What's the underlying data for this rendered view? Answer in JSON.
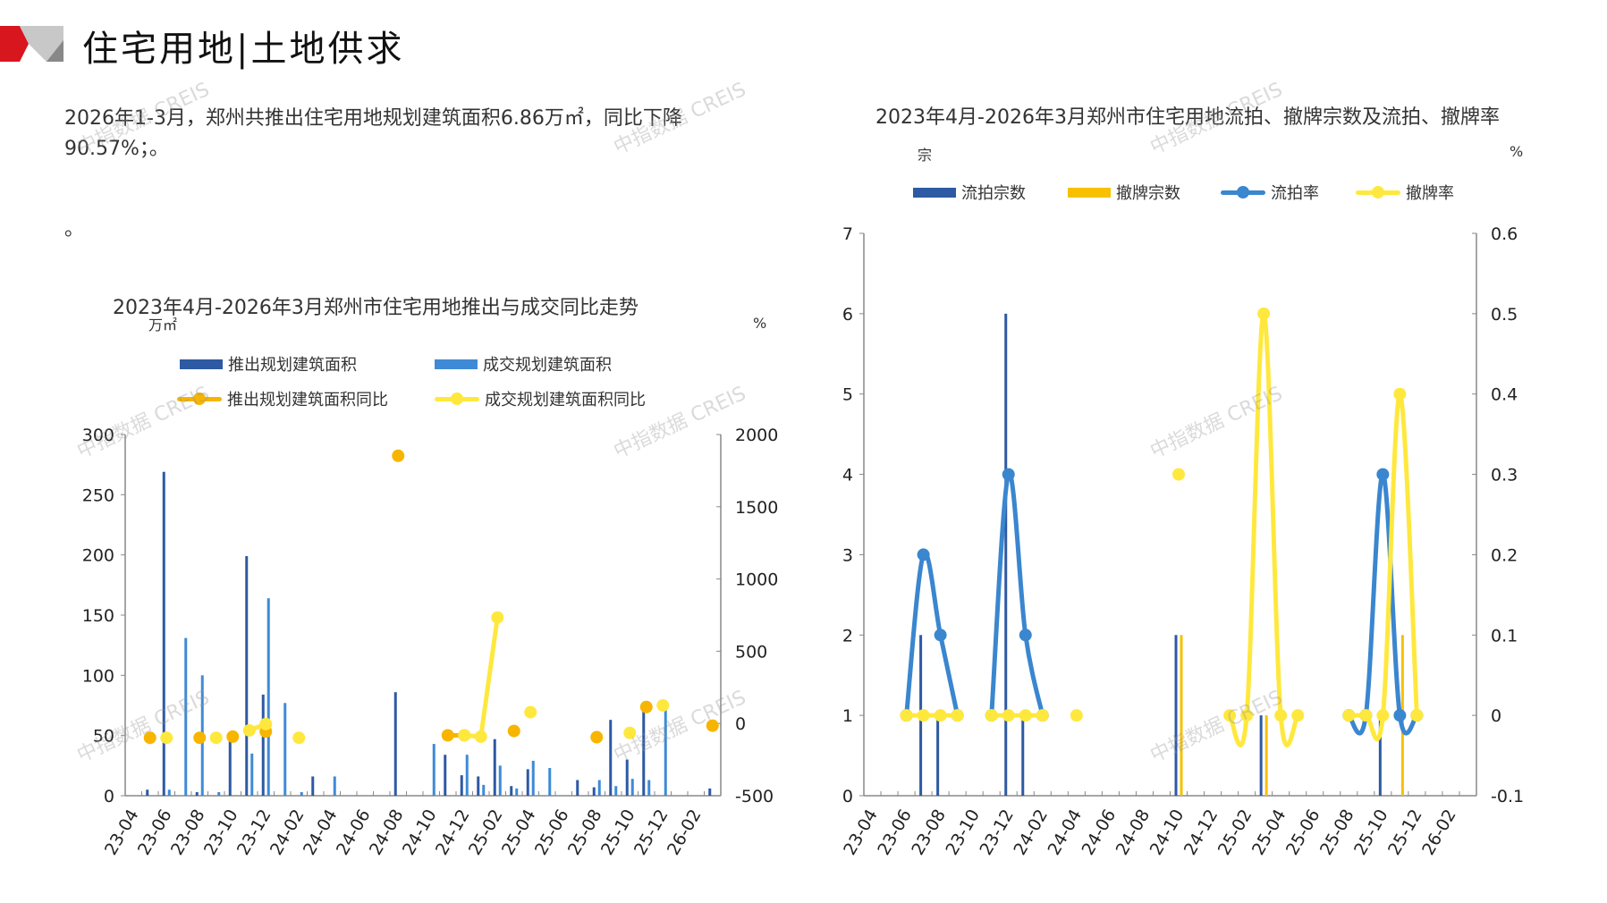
{
  "page": {
    "title": "住宅用地|土地供求",
    "paragraph": "2026年1-3月，郑州共推出住宅用地规划建筑面积6.86万㎡，同比下降90.57%；。",
    "paragraph2": "。",
    "watermark": "中指数据 CREIS"
  },
  "colors": {
    "dark_blue": "#2E59A3",
    "light_blue": "#3F8AD6",
    "orange": "#F7B500",
    "yellow": "#FFE83D",
    "blue_line": "#3A86CF",
    "axis": "#888888",
    "logo_red": "#D7161E"
  },
  "chart_data": [
    {
      "type": "bar",
      "title": "2023年4月-2026年3月郑州市住宅用地推出与成交同比走势",
      "ylabel": "万㎡",
      "y2label": "%",
      "ylim": [
        0,
        300
      ],
      "y_ticks": [
        "0",
        "50",
        "100",
        "150",
        "200",
        "250",
        "300"
      ],
      "y2lim": [
        -500,
        2000
      ],
      "y2_ticks": [
        "-500",
        "0",
        "500",
        "1000",
        "1500",
        "2000"
      ],
      "x_tick_labels": [
        "23-04",
        "23-06",
        "23-08",
        "23-10",
        "23-12",
        "24-02",
        "24-04",
        "24-06",
        "24-08",
        "24-10",
        "24-12",
        "25-02",
        "25-04",
        "25-06",
        "25-08",
        "25-10",
        "25-12",
        "26-02"
      ],
      "months_count": 36,
      "legend": [
        "推出规划建筑面积",
        "成交规划建筑面积",
        "推出规划建筑面积同比",
        "成交规划建筑面积同比"
      ],
      "series": [
        {
          "name": "推出规划建筑面积",
          "kind": "bar",
          "axis": "left",
          "values": [
            0,
            5,
            269,
            0,
            3,
            0,
            46,
            199,
            84,
            0,
            0,
            16,
            0,
            0,
            0,
            0,
            86,
            0,
            0,
            34,
            17,
            16,
            47,
            8,
            22,
            0,
            0,
            13,
            7,
            63,
            30,
            70,
            0,
            0,
            0,
            6
          ]
        },
        {
          "name": "成交规划建筑面积",
          "kind": "bar",
          "axis": "left",
          "values": [
            0,
            0,
            5,
            131,
            100,
            3,
            0,
            35,
            164,
            77,
            3,
            0,
            16,
            0,
            0,
            0,
            0,
            0,
            43,
            0,
            34,
            9,
            25,
            6,
            29,
            23,
            0,
            0,
            13,
            8,
            14,
            13,
            71,
            0,
            0,
            0
          ]
        },
        {
          "name": "推出规划建筑面积同比",
          "kind": "line",
          "axis": "right",
          "values": [
            null,
            -99,
            null,
            null,
            -99,
            null,
            -91,
            null,
            -56,
            null,
            null,
            null,
            null,
            null,
            null,
            null,
            1853,
            null,
            null,
            -82,
            -82,
            null,
            null,
            -52,
            null,
            null,
            null,
            null,
            -95,
            null,
            null,
            114,
            null,
            null,
            null,
            -15
          ]
        },
        {
          "name": "成交规划建筑面积同比",
          "kind": "line",
          "axis": "right",
          "values": [
            null,
            null,
            -99,
            null,
            null,
            -99,
            null,
            -48,
            -4,
            null,
            -99,
            null,
            null,
            null,
            null,
            null,
            null,
            null,
            null,
            null,
            -82,
            -91,
            734,
            null,
            78,
            null,
            null,
            null,
            null,
            null,
            -65,
            null,
            125,
            null,
            null,
            null
          ]
        }
      ]
    },
    {
      "type": "bar",
      "title": "2023年4月-2026年3月郑州市住宅用地流拍、撤牌宗数及流拍、撤牌率",
      "ylabel": "宗",
      "y2label": "%",
      "ylim": [
        0,
        7
      ],
      "y_ticks": [
        "0",
        "1",
        "2",
        "3",
        "4",
        "5",
        "6",
        "7"
      ],
      "y2lim": [
        -0.1,
        0.6
      ],
      "y2_ticks": [
        "-0.1",
        "0",
        "0.1",
        "0.2",
        "0.3",
        "0.4",
        "0.5",
        "0.6"
      ],
      "x_tick_labels": [
        "23-04",
        "23-06",
        "23-08",
        "23-10",
        "23-12",
        "24-02",
        "24-04",
        "24-06",
        "24-08",
        "24-10",
        "24-12",
        "25-02",
        "25-04",
        "25-06",
        "25-08",
        "25-10",
        "25-12",
        "26-02"
      ],
      "months_count": 36,
      "legend": [
        "流拍宗数",
        "撤牌宗数",
        "流拍率",
        "撤牌率"
      ],
      "series": [
        {
          "name": "流拍宗数",
          "kind": "bar",
          "axis": "left",
          "values": [
            0,
            0,
            0,
            2,
            1,
            0,
            0,
            0,
            6,
            1,
            0,
            0,
            0,
            0,
            0,
            0,
            0,
            0,
            2,
            0,
            0,
            0,
            0,
            1,
            0,
            0,
            0,
            0,
            0,
            0,
            1,
            0,
            0,
            0,
            0,
            0
          ]
        },
        {
          "name": "撤牌宗数",
          "kind": "bar",
          "axis": "left",
          "values": [
            0,
            0,
            0,
            0,
            0,
            0,
            0,
            0,
            0,
            0,
            0,
            0,
            0,
            0,
            0,
            0,
            0,
            0,
            2,
            0,
            0,
            0,
            0,
            1,
            0,
            0,
            0,
            0,
            0,
            0,
            0,
            2,
            0,
            0,
            0,
            0
          ]
        },
        {
          "name": "流拍率",
          "kind": "line",
          "axis": "right",
          "values": [
            null,
            null,
            0,
            0.2,
            0.1,
            0,
            null,
            0,
            0.3,
            0.1,
            0,
            null,
            null,
            null,
            null,
            null,
            null,
            null,
            null,
            null,
            null,
            null,
            null,
            null,
            null,
            null,
            null,
            null,
            0,
            0,
            0.3,
            0,
            0,
            null,
            null,
            null
          ]
        },
        {
          "name": "撤牌率",
          "kind": "line",
          "axis": "right",
          "values": [
            null,
            null,
            0,
            0,
            0,
            0,
            null,
            0,
            0,
            0,
            0,
            null,
            0,
            null,
            null,
            null,
            null,
            null,
            0.3,
            null,
            null,
            0,
            0,
            0.5,
            0,
            0,
            null,
            null,
            0,
            0,
            0,
            0.4,
            0,
            null,
            null,
            null
          ]
        }
      ]
    }
  ]
}
